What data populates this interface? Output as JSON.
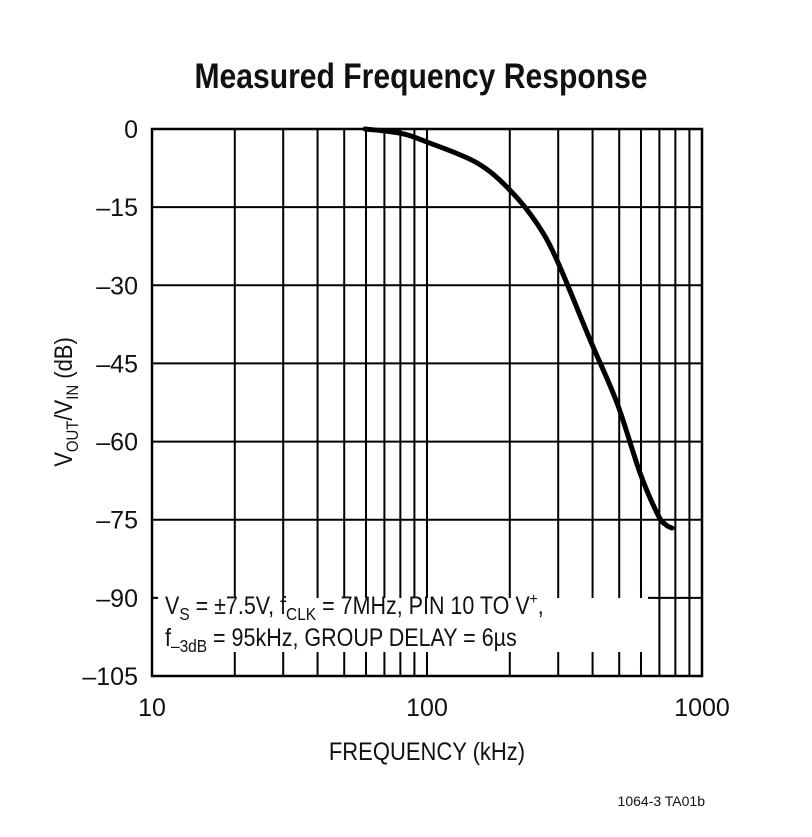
{
  "chart_data": {
    "type": "line",
    "title": "Measured Frequency Response",
    "xlabel": "FREQUENCY (kHz)",
    "ylabel": {
      "main": "V",
      "sub1": "OUT",
      "mid": "/V",
      "sub2": "IN",
      "tail": " (dB)"
    },
    "x_scale": "log",
    "xlim": [
      10,
      1000
    ],
    "ylim": [
      -105,
      0
    ],
    "x_ticks": [
      10,
      100,
      1000
    ],
    "y_ticks": [
      0,
      -15,
      -30,
      -45,
      -60,
      -75,
      -90,
      -105
    ],
    "y_tick_labels": [
      "0",
      "–15",
      "–30",
      "–45",
      "–60",
      "–75",
      "–90",
      "–105"
    ],
    "grid": true,
    "series": [
      {
        "color": "#000000",
        "x": [
          59.5,
          80,
          100,
          152,
          200,
          250,
          297,
          392,
          491,
          595,
          692,
          740,
          778
        ],
        "y": [
          0,
          -0.8,
          -2.5,
          -6.5,
          -11.7,
          -18,
          -25.2,
          -40.5,
          -52.6,
          -66.0,
          -74.1,
          -76.0,
          -76.6
        ]
      }
    ],
    "annotation": {
      "line1": {
        "a": "V",
        "a_sub": "S",
        "b": " = ±7.5V, f",
        "b_sub": "CLK",
        "c": " = 7MHz, PIN 10 TO V",
        "c_sup": "+",
        "d": ","
      },
      "line2": {
        "a": "f",
        "a_sub": "–3dB",
        "b": " = 95kHz, GROUP DELAY = 6µs"
      }
    },
    "footnote": "1064-3 TA01b"
  }
}
